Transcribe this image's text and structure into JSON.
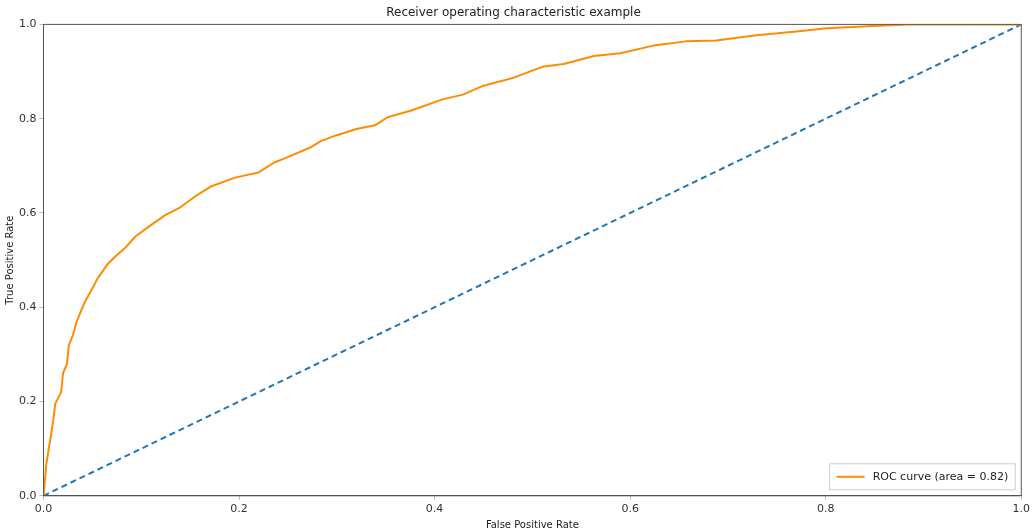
{
  "chart_data": {
    "type": "line",
    "title": "Receiver operating characteristic example",
    "xlabel": "False Positive Rate",
    "ylabel": "True Positive Rate",
    "xlim": [
      0,
      1
    ],
    "ylim": [
      0,
      1.0
    ],
    "xticks": [
      {
        "value": 0,
        "label": "0.0"
      },
      0.2,
      0.4,
      0.6,
      0.8,
      {
        "value": 1,
        "label": "1.0"
      }
    ],
    "yticks": [
      {
        "value": 0,
        "label": "0.0"
      },
      0.2,
      0.4,
      0.6,
      0.8,
      {
        "value": 1,
        "label": "1.0"
      }
    ],
    "grid": false,
    "legend": "bottom right",
    "marker": "none",
    "series": [
      {
        "name": "ROC curve (area = 0.82)",
        "color": "#ff8c00",
        "line_style": "solid",
        "x": [
          0,
          0.003,
          0.007,
          0.01,
          0.012,
          0.018,
          0.02,
          0.024,
          0.026,
          0.03,
          0.034,
          0.038,
          0.042,
          0.05,
          0.055,
          0.065,
          0.072,
          0.083,
          0.094,
          0.107,
          0.124,
          0.14,
          0.155,
          0.171,
          0.196,
          0.22,
          0.236,
          0.248,
          0.274,
          0.284,
          0.3,
          0.32,
          0.339,
          0.352,
          0.377,
          0.408,
          0.429,
          0.45,
          0.481,
          0.51,
          0.532,
          0.563,
          0.59,
          0.626,
          0.657,
          0.688,
          0.729,
          0.77,
          0.801,
          0.843,
          0.884,
          1
        ],
        "values": [
          0,
          0.069,
          0.12,
          0.16,
          0.195,
          0.22,
          0.26,
          0.28,
          0.32,
          0.34,
          0.37,
          0.39,
          0.41,
          0.44,
          0.46,
          0.49,
          0.505,
          0.525,
          0.55,
          0.57,
          0.595,
          0.612,
          0.635,
          0.656,
          0.675,
          0.686,
          0.707,
          0.717,
          0.74,
          0.753,
          0.765,
          0.778,
          0.786,
          0.803,
          0.818,
          0.841,
          0.851,
          0.87,
          0.887,
          0.91,
          0.916,
          0.933,
          0.939,
          0.956,
          0.964,
          0.966,
          0.977,
          0.985,
          0.992,
          0.996,
          1,
          1
        ]
      },
      {
        "color": "#1f77b4",
        "line_style": "dashed",
        "x": [
          0,
          1
        ],
        "values": [
          0,
          1
        ]
      }
    ]
  }
}
